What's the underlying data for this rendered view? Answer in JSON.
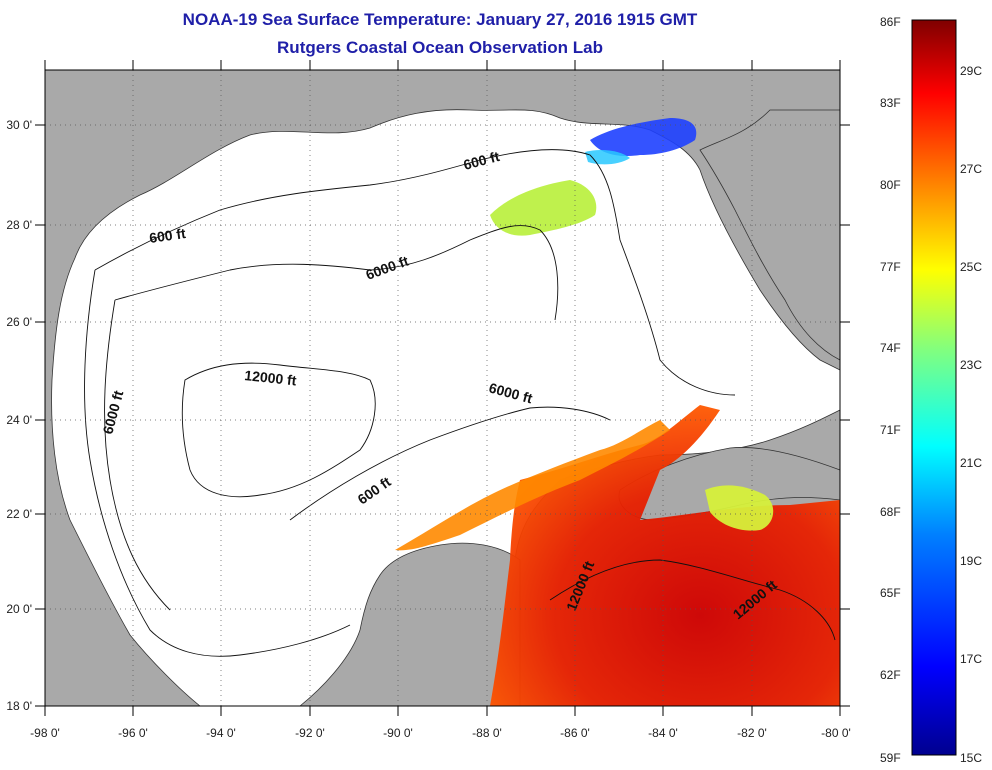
{
  "header": {
    "title": "NOAA-19 Sea Surface Temperature:  January 27, 2016 1915 GMT",
    "subtitle": "Rutgers Coastal Ocean Observation Lab"
  },
  "map": {
    "lon_range": [
      -98,
      -80
    ],
    "lat_range": [
      18,
      31
    ],
    "lon_ticks": [
      "-98 0'",
      "-96 0'",
      "-94 0'",
      "-92 0'",
      "-90 0'",
      "-88 0'",
      "-86 0'",
      "-84 0'",
      "-82 0'",
      "-80 0'"
    ],
    "lat_ticks": [
      "18 0'",
      "20 0'",
      "22 0'",
      "24 0'",
      "26 0'",
      "28 0'",
      "30 0'"
    ],
    "land_color": "#a9a9a9",
    "water_color": "#ffffff",
    "contour_labels": [
      "600 ft",
      "600 ft",
      "600 ft",
      "6000 ft",
      "6000 ft",
      "6000 ft",
      "12000 ft",
      "12000 ft",
      "12000 ft"
    ]
  },
  "colorbar": {
    "fahrenheit_labels": [
      "86F",
      "83F",
      "80F",
      "77F",
      "74F",
      "71F",
      "68F",
      "65F",
      "62F",
      "59F"
    ],
    "celsius_labels": [
      "29C",
      "27C",
      "25C",
      "23C",
      "21C",
      "19C",
      "17C",
      "15C"
    ],
    "colors": [
      "#7f0000",
      "#ff0000",
      "#ff8000",
      "#ffff00",
      "#80ff80",
      "#00ffff",
      "#0080ff",
      "#0000ff",
      "#00008f"
    ]
  }
}
